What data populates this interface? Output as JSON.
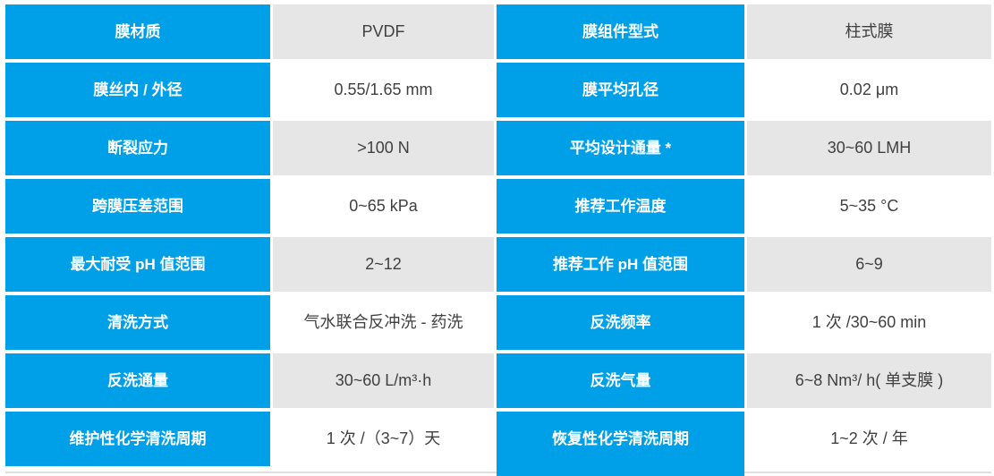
{
  "table": {
    "accent_color": "#00A0E9",
    "stripe_color": "#E6E6E6",
    "value_text_color": "#404040",
    "rows": [
      {
        "label_left": "膜材质",
        "value_left": "PVDF",
        "label_right": "膜组件型式",
        "value_right": "柱式膜"
      },
      {
        "label_left": "膜丝内 / 外径",
        "value_left": "0.55/1.65 mm",
        "label_right": "膜平均孔径",
        "value_right": "0.02 μm"
      },
      {
        "label_left": "断裂应力",
        "value_left": ">100 N",
        "label_right": "平均设计通量 *",
        "value_right": "30~60 LMH"
      },
      {
        "label_left": "跨膜压差范围",
        "value_left": "0~65 kPa",
        "label_right": "推荐工作温度",
        "value_right": "5~35 °C"
      },
      {
        "label_left": "最大耐受 pH 值范围",
        "value_left": "2~12",
        "label_right": "推荐工作 pH 值范围",
        "value_right": "6~9"
      },
      {
        "label_left": "清洗方式",
        "value_left": "气水联合反冲洗 - 药洗",
        "label_right": "反洗频率",
        "value_right": "1 次 /30~60 min"
      },
      {
        "label_left": "反洗通量",
        "value_left": "30~60 L/m³·h",
        "label_right": "反洗气量",
        "value_right": "6~8 Nm³/ h( 单支膜 )"
      },
      {
        "label_left": "维护性化学清洗周期",
        "value_left": "1 次 /（3~7）天",
        "label_right": "恢复性化学清洗周期",
        "value_right": "1~2 次 / 年"
      }
    ]
  }
}
